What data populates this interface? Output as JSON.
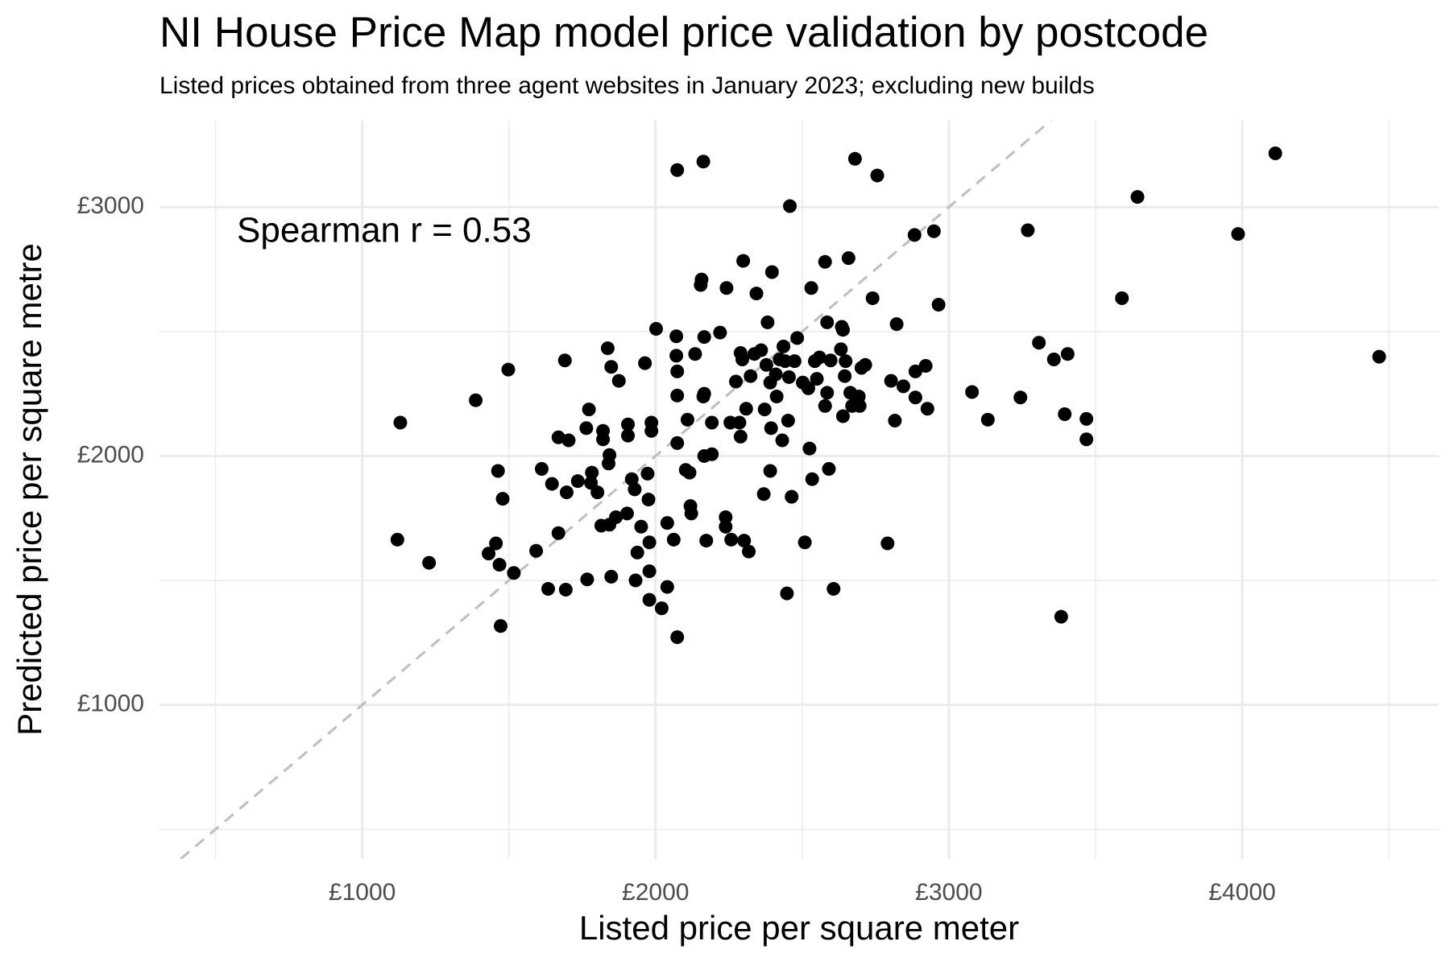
{
  "chart_data": {
    "type": "scatter",
    "title": "NI House Price Map model price validation by postcode",
    "subtitle": "Listed prices obtained from three agent websites in January 2023; excluding new builds",
    "x_label": "Listed price per square meter",
    "y_label": "Predicted price per square metre",
    "annotation": "Spearman r = 0.53",
    "color": "#000000",
    "grid": true,
    "identity_line": true,
    "identity_line_color": "#bebebe",
    "xlim": [
      309,
      4670
    ],
    "ylim": [
      381,
      3347
    ],
    "xticks": [
      {
        "value": 1000,
        "label": "£1000"
      },
      {
        "value": 2000,
        "label": "£2000"
      },
      {
        "value": 3000,
        "label": "£3000"
      },
      {
        "value": 4000,
        "label": "£4000"
      }
    ],
    "yticks": [
      {
        "value": 1000,
        "label": "£1000"
      },
      {
        "value": 2000,
        "label": "£2000"
      },
      {
        "value": 3000,
        "label": "£3000"
      }
    ],
    "x_minor_grid": [
      500,
      1500,
      2500,
      3500,
      4500
    ],
    "y_minor_grid": [
      500,
      1500,
      2500
    ],
    "x": [
      1120,
      1130,
      1228,
      1387,
      1431,
      1456,
      1463,
      1468,
      1472,
      1479,
      1498,
      1517,
      1593,
      1612,
      1634,
      1647,
      1669,
      1669,
      1691,
      1694,
      1697,
      1704,
      1735,
      1764,
      1767,
      1773,
      1780,
      1783,
      1802,
      1815,
      1821,
      1821,
      1837,
      1840,
      1843,
      1843,
      1849,
      1849,
      1865,
      1875,
      1903,
      1906,
      1906,
      1919,
      1929,
      1932,
      1938,
      1951,
      1964,
      1973,
      1976,
      1979,
      1979,
      1979,
      1986,
      1986,
      2002,
      2021,
      2040,
      2040,
      2062,
      2071,
      2071,
      2074,
      2074,
      2074,
      2074,
      2074,
      2103,
      2109,
      2116,
      2119,
      2122,
      2135,
      2154,
      2157,
      2163,
      2163,
      2166,
      2166,
      2166,
      2173,
      2192,
      2192,
      2220,
      2239,
      2239,
      2242,
      2255,
      2258,
      2274,
      2286,
      2290,
      2290,
      2296,
      2299,
      2302,
      2309,
      2318,
      2324,
      2337,
      2344,
      2360,
      2369,
      2372,
      2378,
      2382,
      2391,
      2391,
      2394,
      2397,
      2410,
      2413,
      2423,
      2432,
      2436,
      2442,
      2448,
      2452,
      2455,
      2458,
      2464,
      2474,
      2483,
      2502,
      2509,
      2521,
      2525,
      2531,
      2534,
      2543,
      2550,
      2559,
      2578,
      2578,
      2585,
      2585,
      2591,
      2597,
      2607,
      2632,
      2635,
      2639,
      2639,
      2645,
      2648,
      2658,
      2664,
      2670,
      2680,
      2693,
      2696,
      2702,
      2715,
      2740,
      2756,
      2791,
      2803,
      2816,
      2822,
      2845,
      2883,
      2886,
      2886,
      2921,
      2927,
      2949,
      2965,
      3079,
      3133,
      3244,
      3269,
      3307,
      3358,
      3383,
      3395,
      3405,
      3469,
      3469,
      3590,
      3643,
      3986,
      4113,
      4467
    ],
    "values": [
      1664,
      2134,
      1571,
      2224,
      1608,
      1649,
      1940,
      1563,
      1317,
      1828,
      2347,
      1530,
      1619,
      1948,
      1466,
      1888,
      1690,
      2075,
      2384,
      1463,
      1854,
      2063,
      1899,
      2112,
      1504,
      2187,
      1892,
      1933,
      1854,
      1720,
      2101,
      2067,
      2433,
      1970,
      2004,
      1724,
      2358,
      1515,
      1754,
      2302,
      1769,
      2082,
      2127,
      1907,
      1866,
      1500,
      1612,
      1716,
      2373,
      1929,
      1825,
      1653,
      1537,
      1422,
      2134,
      2101,
      2511,
      1388,
      1731,
      1474,
      1664,
      2481,
      2403,
      2243,
      2340,
      2052,
      3149,
      1272,
      1944,
      2146,
      1933,
      1799,
      1769,
      2410,
      2687,
      2709,
      2239,
      3183,
      2000,
      2250,
      2478,
      1660,
      2007,
      2134,
      2496,
      1754,
      1716,
      2675,
      2134,
      1664,
      2299,
      2134,
      2414,
      2078,
      2388,
      2784,
      1660,
      2190,
      1616,
      2321,
      2410,
      2653,
      2425,
      1847,
      2187,
      2366,
      2537,
      2295,
      1940,
      2112,
      2739,
      2328,
      2239,
      2388,
      2063,
      2440,
      2381,
      1448,
      2142,
      2317,
      3004,
      1836,
      2381,
      2474,
      2295,
      1653,
      2272,
      2030,
      2675,
      1907,
      2381,
      2310,
      2396,
      2780,
      2201,
      2254,
      2537,
      1948,
      2384,
      1466,
      2429,
      2519,
      2160,
      2507,
      2321,
      2381,
      2795,
      2254,
      2201,
      3194,
      2239,
      2201,
      2354,
      2366,
      2634,
      3127,
      1649,
      2302,
      2142,
      2530,
      2280,
      2888,
      2235,
      2340,
      2362,
      2190,
      2903,
      2608,
      2257,
      2146,
      2235,
      2907,
      2455,
      2388,
      1354,
      2168,
      2410,
      2149,
      2067,
      2634,
      3041,
      2892,
      3216,
      2399
    ]
  }
}
